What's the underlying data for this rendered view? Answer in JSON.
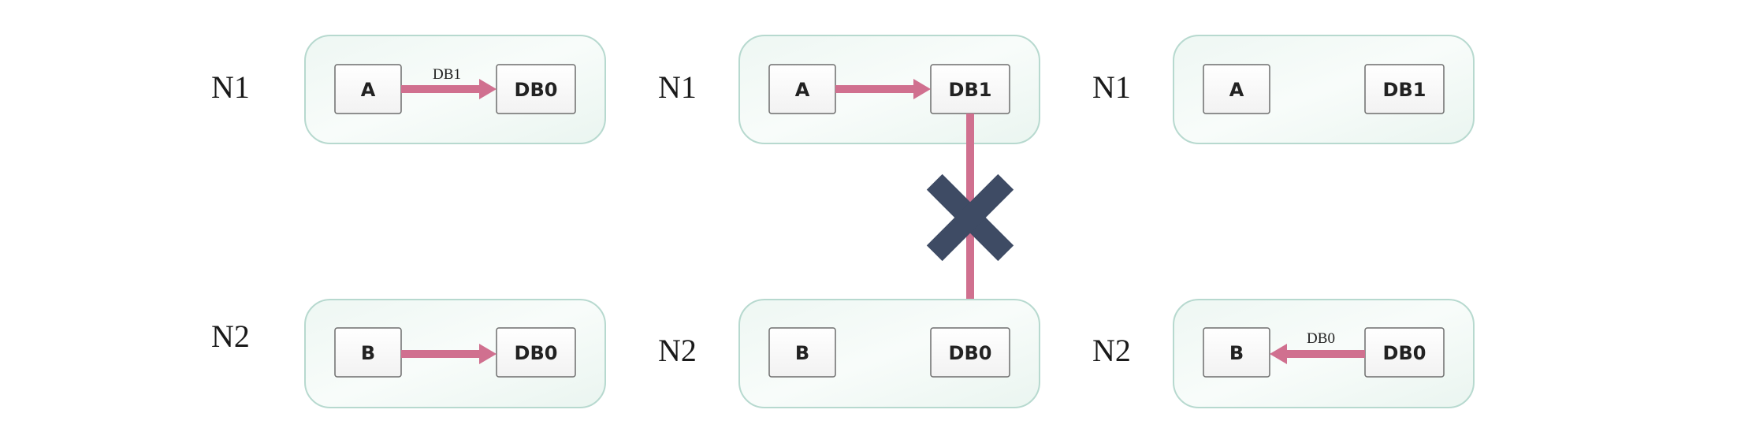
{
  "colors": {
    "arrow": "#d0708f",
    "cross": "#3e4b64",
    "panel_border": "#b7d9cf",
    "panel_fill": "#f3f9f6"
  },
  "scenarios": [
    {
      "top": {
        "node_label": "N1",
        "left_box": "A",
        "right_box": "DB0",
        "arrow_label": "DB1"
      },
      "bottom": {
        "node_label": "N2",
        "left_box": "B",
        "right_box": "DB0",
        "arrow_label": ""
      }
    },
    {
      "top": {
        "node_label": "N1",
        "left_box": "A",
        "right_box": "DB1",
        "arrow_label": ""
      },
      "bottom": {
        "node_label": "N2",
        "left_box": "B",
        "right_box": "DB0",
        "arrow_label": ""
      },
      "blocked_connection_icon": "cross-icon"
    },
    {
      "top": {
        "node_label": "N1",
        "left_box": "A",
        "right_box": "DB1",
        "arrow_label": ""
      },
      "bottom": {
        "node_label": "N2",
        "left_box": "B",
        "right_box": "DB0",
        "arrow_label": "DB0"
      }
    }
  ]
}
